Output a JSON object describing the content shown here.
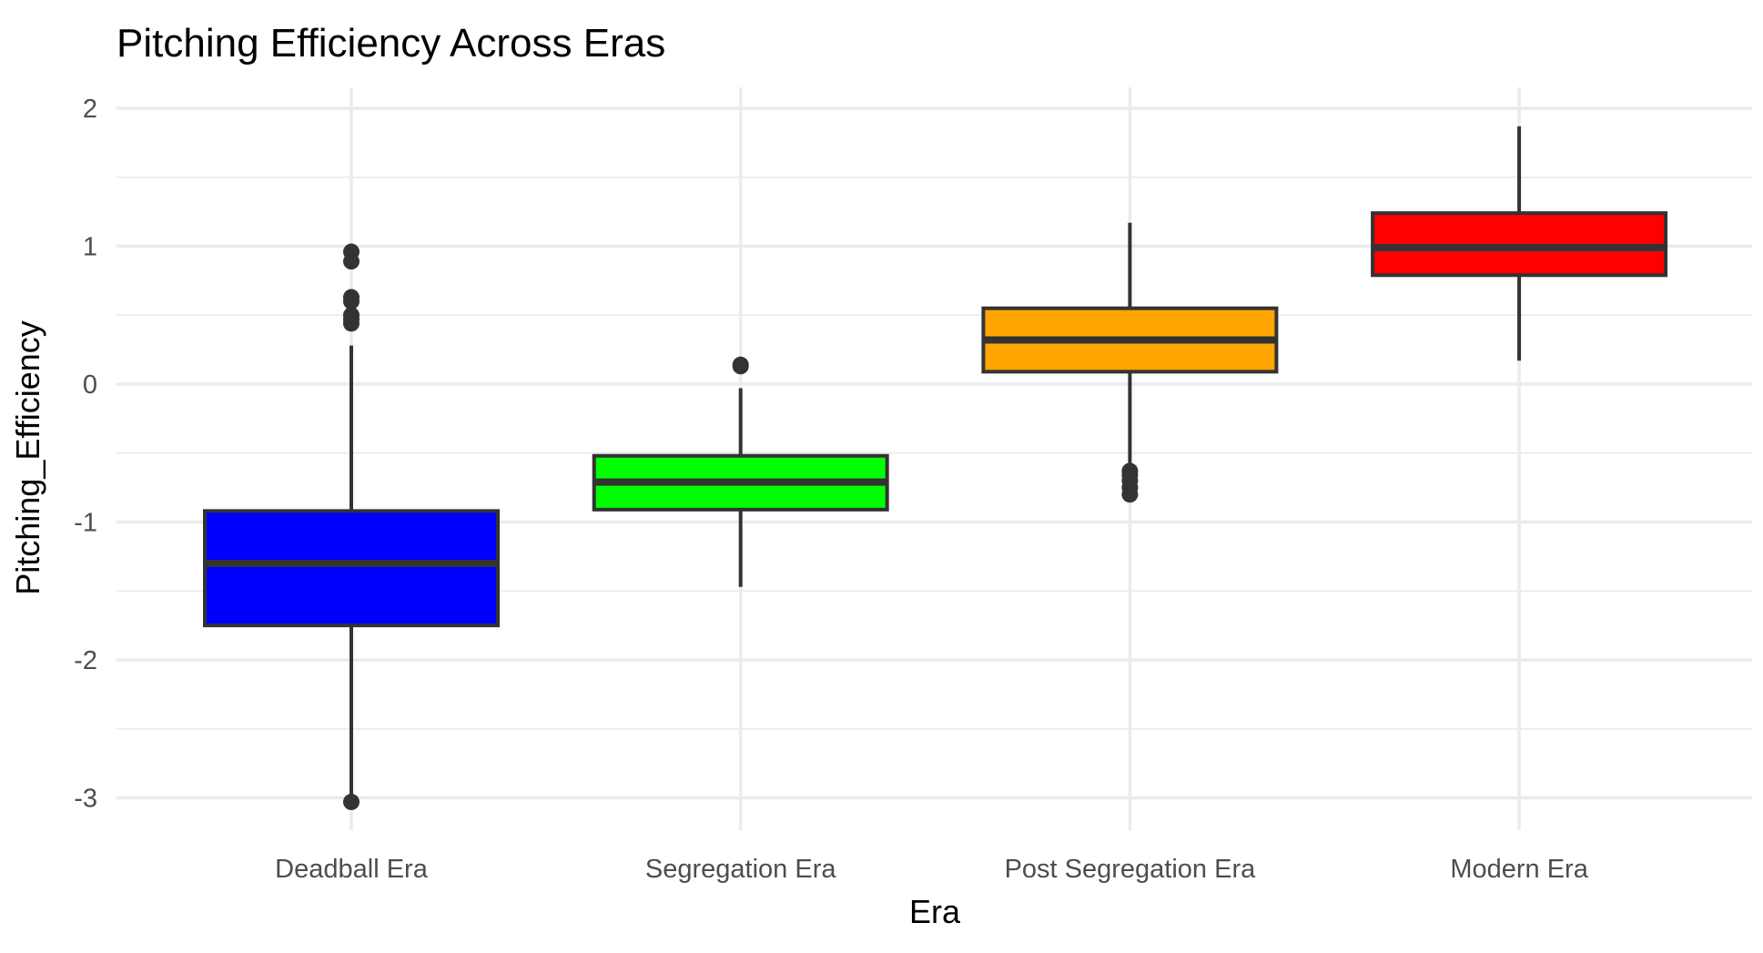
{
  "chart_data": {
    "type": "boxplot",
    "title": "Pitching Efficiency Across Eras",
    "xlabel": "Era",
    "ylabel": "Pitching_Efficiency",
    "categories": [
      "Deadball Era",
      "Segregation Era",
      "Post Segregation Era",
      "Modern Era"
    ],
    "y_ticks": [
      "-3",
      "-2",
      "-1",
      "0",
      "1",
      "2"
    ],
    "ylim": [
      -3.2,
      2.2
    ],
    "grid": true,
    "legend": "none",
    "boxes": [
      {
        "category": "Deadball Era",
        "color": "#0000ff",
        "whisker_low": -3.0,
        "q1": -1.75,
        "median": -1.3,
        "q3": -0.92,
        "whisker_high": 0.28,
        "outliers": [
          0.96,
          0.89,
          0.63,
          0.6,
          0.5,
          0.47,
          0.44,
          -3.03
        ]
      },
      {
        "category": "Segregation Era",
        "color": "#00ff00",
        "whisker_low": -1.47,
        "q1": -0.91,
        "median": -0.71,
        "q3": -0.52,
        "whisker_high": -0.03,
        "outliers": [
          0.14,
          0.13
        ]
      },
      {
        "category": "Post Segregation Era",
        "color": "#ffa500",
        "whisker_low": -0.6,
        "q1": 0.09,
        "median": 0.32,
        "q3": 0.55,
        "whisker_high": 1.17,
        "outliers": [
          -0.63,
          -0.66,
          -0.7,
          -0.75,
          -0.8
        ]
      },
      {
        "category": "Modern Era",
        "color": "#ff0000",
        "whisker_low": 0.17,
        "q1": 0.79,
        "median": 0.99,
        "q3": 1.24,
        "whisker_high": 1.87,
        "outliers": []
      }
    ]
  }
}
